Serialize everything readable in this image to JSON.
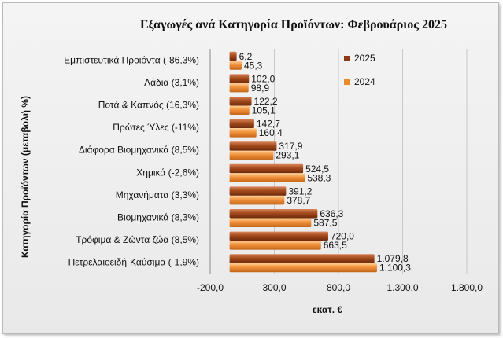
{
  "chart_data": {
    "type": "bar",
    "orientation": "horizontal",
    "title": "Εξαγωγές ανά Κατηγορία Προϊόντων:  Φεβρουάριος 2025",
    "xlabel": "εκατ. €",
    "ylabel": "Κατηγορία Προϊόντων (μεταβολή %)",
    "xlim": [
      -200,
      1800
    ],
    "x_ticks": [
      -200,
      300,
      800,
      1300,
      1800
    ],
    "x_tick_labels": [
      "-200,0",
      "300,0",
      "800,0",
      "1.300,0",
      "1.800,0"
    ],
    "grid": "vertical",
    "legend_position": "top-right",
    "categories": [
      "Εμπιστευτικά Προϊόντα (-86,3%)",
      "Λάδια (3,1%)",
      "Ποτά & Καπνός (16,3%)",
      "Πρώτες Ύλες (-11%)",
      "Διάφορα Βιομηχανικά (8,5%)",
      "Χημικά (-2,6%)",
      "Μηχανήματα (3,3%)",
      "Βιομηχανικά (8,3%)",
      "Τρόφιμα & Ζώντα ζώα (8,5%)",
      "Πετρελαιοειδή-Καύσιμα (-1,9%)"
    ],
    "series": [
      {
        "name": "2025",
        "color": "#8b3a14",
        "values": [
          6.2,
          102.0,
          122.2,
          142.7,
          317.9,
          524.5,
          391.2,
          636.3,
          720.0,
          1079.8
        ],
        "labels": [
          "6,2",
          "102,0",
          "122,2",
          "142,7",
          "317,9",
          "524,5",
          "391,2",
          "636,3",
          "720,0",
          "1.079,8"
        ]
      },
      {
        "name": "2024",
        "color": "#e98a2c",
        "values": [
          45.3,
          98.9,
          105.1,
          160.4,
          293.1,
          538.3,
          378.7,
          587.5,
          663.5,
          1100.3
        ],
        "labels": [
          "45,3",
          "98,9",
          "105,1",
          "160,4",
          "293,1",
          "538,3",
          "378,7",
          "587,5",
          "663,5",
          "1.100,3"
        ]
      }
    ]
  }
}
